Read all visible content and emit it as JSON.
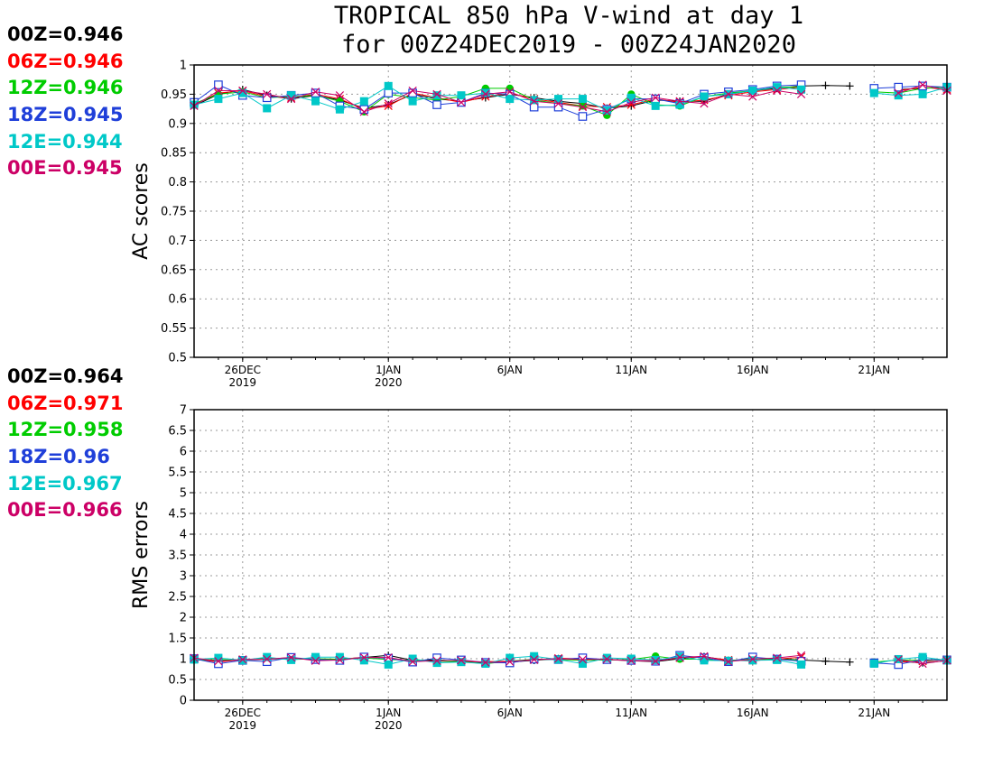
{
  "title": {
    "line1": "TROPICAL 850 hPa V-wind at day 1",
    "line2": "for 00Z24DEC2019 - 00Z24JAN2020"
  },
  "series_styles": [
    {
      "name": "00Z",
      "color": "#000000",
      "marker": "plus"
    },
    {
      "name": "06Z",
      "color": "#ff0000",
      "marker": "cross"
    },
    {
      "name": "12Z",
      "color": "#00cc00",
      "marker": "filled-circle"
    },
    {
      "name": "18Z",
      "color": "#1f3fd9",
      "marker": "open-square"
    },
    {
      "name": "12E",
      "color": "#00c8c8",
      "marker": "filled-square"
    },
    {
      "name": "00E",
      "color": "#cc0066",
      "marker": "cross"
    }
  ],
  "legends": {
    "ac": [
      "00Z=0.946",
      "06Z=0.946",
      "12Z=0.946",
      "18Z=0.945",
      "12E=0.944",
      "00E=0.945"
    ],
    "rms": [
      "00Z=0.964",
      "06Z=0.971",
      "12Z=0.958",
      "18Z=0.96",
      "12E=0.967",
      "00E=0.966"
    ]
  },
  "chart_data": [
    {
      "type": "line",
      "ylabel": "AC scores",
      "ylim": [
        0.5,
        1.0
      ],
      "yticks": [
        "0.5",
        "0.55",
        "0.6",
        "0.65",
        "0.7",
        "0.75",
        "0.8",
        "0.85",
        "0.9",
        "0.95",
        "1"
      ],
      "xlim": [
        "2019-12-24",
        "2020-01-24"
      ],
      "xticks": [
        {
          "date": "2019-12-26",
          "label": "26DEC",
          "sublabel": "2019"
        },
        {
          "date": "2020-01-01",
          "label": "1JAN",
          "sublabel": "2020"
        },
        {
          "date": "2020-01-06",
          "label": "6JAN",
          "sublabel": ""
        },
        {
          "date": "2020-01-11",
          "label": "11JAN",
          "sublabel": ""
        },
        {
          "date": "2020-01-16",
          "label": "16JAN",
          "sublabel": ""
        },
        {
          "date": "2020-01-21",
          "label": "21JAN",
          "sublabel": ""
        }
      ],
      "grid": true,
      "x": [
        "2019-12-24",
        "2019-12-25",
        "2019-12-26",
        "2019-12-27",
        "2019-12-28",
        "2019-12-29",
        "2019-12-30",
        "2019-12-31",
        "2020-01-01",
        "2020-01-02",
        "2020-01-03",
        "2020-01-04",
        "2020-01-05",
        "2020-01-06",
        "2020-01-07",
        "2020-01-08",
        "2020-01-09",
        "2020-01-10",
        "2020-01-11",
        "2020-01-12",
        "2020-01-13",
        "2020-01-14",
        "2020-01-15",
        "2020-01-16",
        "2020-01-17",
        "2020-01-18",
        "2020-01-19",
        "2020-01-20",
        "2020-01-21",
        "2020-01-22",
        "2020-01-23",
        "2020-01-24"
      ],
      "series": [
        {
          "name": "00Z",
          "values": [
            0.93,
            0.95,
            0.958,
            0.948,
            0.942,
            0.948,
            0.94,
            0.926,
            0.932,
            0.95,
            0.942,
            0.938,
            0.944,
            0.95,
            0.944,
            0.938,
            0.934,
            0.926,
            0.93,
            0.94,
            0.938,
            0.938,
            0.95,
            0.956,
            0.96,
            0.964,
            0.965,
            0.964,
            null,
            0.958,
            0.96,
            0.962
          ]
        },
        {
          "name": "06Z",
          "values": [
            0.932,
            0.952,
            0.956,
            0.946,
            0.944,
            0.95,
            0.942,
            0.924,
            0.93,
            0.952,
            0.944,
            0.936,
            0.946,
            0.952,
            0.942,
            0.936,
            0.93,
            0.928,
            0.932,
            0.942,
            0.936,
            0.94,
            0.948,
            0.954,
            0.958,
            0.962,
            null,
            null,
            null,
            0.956,
            0.962,
            0.958
          ]
        },
        {
          "name": "12Z",
          "values": [
            0.934,
            0.95,
            0.954,
            0.944,
            0.946,
            0.948,
            0.938,
            0.92,
            0.95,
            0.944,
            0.94,
            0.946,
            0.96,
            0.96,
            0.94,
            0.934,
            0.93,
            0.914,
            0.95,
            0.932,
            0.93,
            0.946,
            0.952,
            0.956,
            0.962,
            0.962,
            null,
            null,
            0.954,
            0.952,
            0.96,
            0.962
          ]
        },
        {
          "name": "18Z",
          "values": [
            0.936,
            0.966,
            0.948,
            0.944,
            0.948,
            0.952,
            0.93,
            0.924,
            0.952,
            0.952,
            0.932,
            0.936,
            0.952,
            0.95,
            0.928,
            0.928,
            0.912,
            0.924,
            0.942,
            0.942,
            0.934,
            0.95,
            0.954,
            0.958,
            0.964,
            0.966,
            null,
            null,
            0.96,
            0.962,
            0.964,
            0.962
          ]
        },
        {
          "name": "12E",
          "values": [
            0.932,
            0.942,
            0.952,
            0.926,
            0.948,
            0.938,
            0.924,
            0.938,
            0.964,
            0.938,
            0.948,
            0.948,
            0.952,
            0.942,
            0.94,
            0.942,
            0.942,
            0.922,
            0.944,
            0.93,
            0.932,
            0.946,
            0.95,
            0.956,
            0.962,
            0.958,
            null,
            null,
            0.952,
            0.948,
            0.95,
            0.962
          ]
        },
        {
          "name": "00E",
          "values": [
            0.93,
            0.956,
            0.956,
            0.95,
            0.942,
            0.954,
            0.948,
            0.92,
            0.934,
            0.956,
            0.95,
            0.936,
            0.95,
            0.954,
            0.938,
            0.934,
            0.928,
            0.92,
            0.936,
            0.944,
            0.938,
            0.934,
            0.95,
            0.946,
            0.956,
            0.95,
            null,
            null,
            null,
            0.952,
            0.966,
            0.956
          ]
        }
      ]
    },
    {
      "type": "line",
      "ylabel": "RMS errors",
      "ylim": [
        0,
        7
      ],
      "yticks": [
        "0",
        "0.5",
        "1",
        "1.5",
        "2",
        "2.5",
        "3",
        "3.5",
        "4",
        "4.5",
        "5",
        "5.5",
        "6",
        "6.5",
        "7"
      ],
      "xlim": [
        "2019-12-24",
        "2020-01-24"
      ],
      "xticks": [
        {
          "date": "2019-12-26",
          "label": "26DEC",
          "sublabel": "2019"
        },
        {
          "date": "2020-01-01",
          "label": "1JAN",
          "sublabel": "2020"
        },
        {
          "date": "2020-01-06",
          "label": "6JAN",
          "sublabel": ""
        },
        {
          "date": "2020-01-11",
          "label": "11JAN",
          "sublabel": ""
        },
        {
          "date": "2020-01-16",
          "label": "16JAN",
          "sublabel": ""
        },
        {
          "date": "2020-01-21",
          "label": "21JAN",
          "sublabel": ""
        }
      ],
      "grid": true,
      "x": [
        "2019-12-24",
        "2019-12-25",
        "2019-12-26",
        "2019-12-27",
        "2019-12-28",
        "2019-12-29",
        "2019-12-30",
        "2019-12-31",
        "2020-01-01",
        "2020-01-02",
        "2020-01-03",
        "2020-01-04",
        "2020-01-05",
        "2020-01-06",
        "2020-01-07",
        "2020-01-08",
        "2020-01-09",
        "2020-01-10",
        "2020-01-11",
        "2020-01-12",
        "2020-01-13",
        "2020-01-14",
        "2020-01-15",
        "2020-01-16",
        "2020-01-17",
        "2020-01-18",
        "2020-01-19",
        "2020-01-20",
        "2020-01-21",
        "2020-01-22",
        "2020-01-23",
        "2020-01-24"
      ],
      "series": [
        {
          "name": "00Z",
          "values": [
            0.98,
            0.95,
            0.97,
            0.99,
            1.01,
            0.98,
            0.99,
            1.03,
            1.08,
            0.96,
            0.97,
            0.94,
            0.9,
            0.92,
            0.96,
            1.0,
            0.99,
            0.98,
            0.95,
            0.93,
            1.0,
            1.05,
            0.96,
            0.95,
            1.0,
            0.97,
            0.94,
            0.92,
            null,
            0.94,
            0.9,
            0.95
          ]
        },
        {
          "name": "06Z",
          "values": [
            1.0,
            0.92,
            0.98,
            0.99,
            1.03,
            0.96,
            0.98,
            1.04,
            1.02,
            0.94,
            0.95,
            0.92,
            0.93,
            0.94,
            0.97,
            1.01,
            1.0,
            0.97,
            0.96,
            0.95,
            1.02,
            1.04,
            0.97,
            0.96,
            0.99,
            1.04,
            null,
            null,
            null,
            0.92,
            0.94,
            0.98
          ]
        },
        {
          "name": "12Z",
          "values": [
            0.97,
            0.98,
            0.96,
            1.02,
            0.98,
            1.0,
            0.99,
            1.02,
            0.98,
            0.96,
            0.94,
            0.93,
            0.88,
            0.94,
            0.99,
            0.98,
            0.96,
            0.97,
            0.98,
            1.06,
            0.99,
            0.99,
            0.95,
            1.0,
            0.98,
            0.97,
            null,
            null,
            0.92,
            0.97,
            0.96,
            0.98
          ]
        },
        {
          "name": "18Z",
          "values": [
            1.0,
            0.88,
            0.96,
            0.93,
            1.03,
            0.98,
            0.96,
            1.04,
            1.01,
            0.92,
            1.02,
            0.97,
            0.91,
            0.9,
            0.99,
            0.98,
            1.02,
            0.98,
            0.96,
            0.94,
            1.08,
            1.02,
            0.93,
            1.04,
            0.99,
            0.94,
            null,
            null,
            0.9,
            0.86,
            0.98,
            0.97
          ]
        },
        {
          "name": "12E",
          "values": [
            0.98,
            1.02,
            0.96,
            1.04,
            0.97,
            1.04,
            1.04,
            0.96,
            0.86,
            1.0,
            0.9,
            0.92,
            0.88,
            1.02,
            1.06,
            0.98,
            0.88,
            1.02,
            1.0,
            0.97,
            1.05,
            0.96,
            0.95,
            0.96,
            0.97,
            0.86,
            null,
            null,
            0.88,
            0.99,
            1.04,
            0.96
          ]
        },
        {
          "name": "00E",
          "values": [
            1.02,
            0.94,
            0.98,
            0.99,
            1.03,
            0.95,
            0.97,
            1.03,
            1.03,
            0.93,
            0.95,
            0.96,
            0.91,
            0.93,
            0.98,
            1.0,
            0.98,
            0.99,
            0.95,
            0.94,
            1.03,
            1.06,
            0.93,
            0.99,
            1.02,
            1.08,
            null,
            null,
            null,
            0.98,
            0.88,
            0.96
          ]
        }
      ]
    }
  ]
}
